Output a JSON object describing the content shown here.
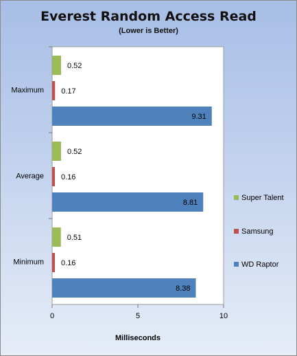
{
  "chart_data": {
    "type": "bar",
    "orientation": "horizontal",
    "title": "Everest Random Access Read",
    "subtitle": "(Lower is Better)",
    "xlabel": "Milliseconds",
    "ylabel": "",
    "categories": [
      "Maximum",
      "Average",
      "Minimum"
    ],
    "series": [
      {
        "name": "Super Talent",
        "color": "#9bbb59",
        "values": [
          0.52,
          0.52,
          0.51
        ],
        "labels": [
          "0.52",
          "0.52",
          "0.51"
        ]
      },
      {
        "name": "Samsung",
        "color": "#c0504d",
        "values": [
          0.17,
          0.16,
          0.16
        ],
        "labels": [
          "0.17",
          "0.16",
          "0.16"
        ]
      },
      {
        "name": "WD Raptor",
        "color": "#4f81bd",
        "values": [
          9.31,
          8.81,
          8.38
        ],
        "labels": [
          "9.31",
          "8.81",
          "8.38"
        ]
      }
    ],
    "xlim": [
      0,
      10
    ],
    "xticks": [
      0,
      5,
      10
    ],
    "xtick_labels": [
      "0",
      "5",
      "10"
    ],
    "grid": false,
    "legend_position": "right"
  }
}
